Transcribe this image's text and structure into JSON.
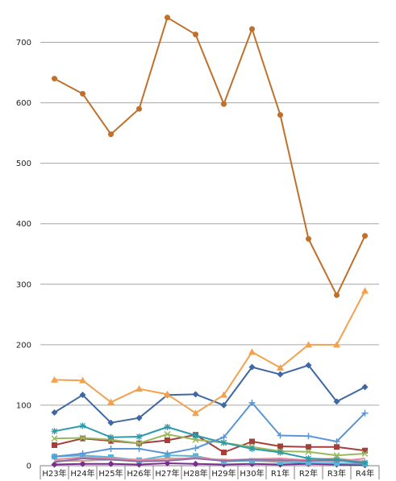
{
  "chart_data": {
    "type": "line",
    "title": "",
    "xlabel": "",
    "ylabel": "",
    "ylim": [
      0,
      770
    ],
    "yticks": [
      0,
      100,
      200,
      300,
      400,
      500,
      600,
      700
    ],
    "grid": true,
    "legend": "none",
    "categories": [
      "H23年",
      "H24年",
      "H25年",
      "H26年",
      "H27年",
      "H28年",
      "H29年",
      "H30年",
      "R1年",
      "R2年",
      "R3年",
      "R4年"
    ],
    "series": [
      {
        "color": "#C0702A",
        "marker": "circle",
        "values": [
          640,
          615,
          548,
          590,
          741,
          713,
          598,
          722,
          580,
          375,
          282,
          380
        ]
      },
      {
        "color": "#F4A14E",
        "marker": "triangle",
        "values": [
          142,
          141,
          105,
          127,
          118,
          87,
          117,
          188,
          162,
          200,
          200,
          289
        ]
      },
      {
        "color": "#3E67A4",
        "marker": "diamond",
        "values": [
          88,
          117,
          71,
          79,
          117,
          118,
          100,
          163,
          151,
          166,
          106,
          130
        ]
      },
      {
        "color": "#5B95D3",
        "marker": "plus",
        "values": [
          15,
          20,
          28,
          28,
          20,
          29,
          47,
          104,
          50,
          49,
          40,
          87
        ]
      },
      {
        "color": "#2F9AA8",
        "marker": "star",
        "values": [
          57,
          66,
          47,
          48,
          64,
          50,
          38,
          28,
          22,
          12,
          10,
          5
        ]
      },
      {
        "color": "#9AB85C",
        "marker": "x",
        "values": [
          45,
          46,
          43,
          37,
          52,
          43,
          38,
          31,
          24,
          23,
          17,
          20
        ]
      },
      {
        "color": "#A4403C",
        "marker": "square",
        "values": [
          34,
          45,
          41,
          37,
          42,
          51,
          22,
          40,
          32,
          31,
          31,
          25
        ]
      },
      {
        "color": "#8A6FA8",
        "marker": "none",
        "values": [
          6,
          12,
          10,
          7,
          8,
          12,
          8,
          10,
          9,
          8,
          9,
          4
        ]
      },
      {
        "color": "#E88A9E",
        "marker": "none",
        "values": [
          10,
          14,
          12,
          10,
          9,
          14,
          9,
          11,
          12,
          9,
          7,
          12
        ]
      },
      {
        "color": "#D0A090",
        "marker": "none",
        "values": [
          8,
          8,
          10,
          9,
          12,
          12,
          10,
          9,
          8,
          10,
          12,
          7
        ]
      },
      {
        "color": "#52B6D8",
        "marker": "square",
        "values": [
          15,
          17,
          14,
          9,
          17,
          16,
          7,
          8,
          6,
          5,
          4,
          3
        ]
      },
      {
        "color": "#7A2E8C",
        "marker": "diamond",
        "values": [
          2,
          3,
          3,
          2,
          4,
          3,
          2,
          3,
          2,
          3,
          2,
          1
        ]
      }
    ]
  }
}
